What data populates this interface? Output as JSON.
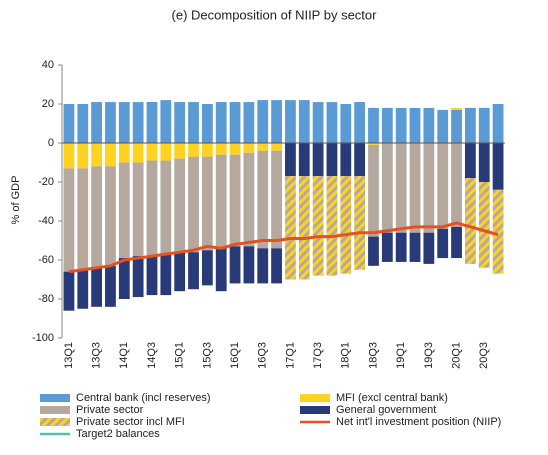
{
  "chart_data": {
    "type": "bar",
    "title": "(e) Decomposition of NIIP by sector",
    "y_label": "% of GDP",
    "categories": [
      "13Q1",
      null,
      "13Q3",
      null,
      "14Q1",
      null,
      "14Q3",
      null,
      "15Q1",
      null,
      "15Q3",
      null,
      "16Q1",
      null,
      "16Q3",
      null,
      "17Q1",
      null,
      "17Q3",
      null,
      "18Q1",
      null,
      "18Q3",
      null,
      "19Q1",
      null,
      "19Q3",
      null,
      "20Q1",
      null,
      "20Q3",
      null
    ],
    "ylim": [
      -100,
      40
    ],
    "yticks": [
      -100,
      -80,
      -60,
      -40,
      -20,
      0,
      20,
      40
    ],
    "series": [
      {
        "name": "Central bank (incl reserves)",
        "type": "bar",
        "color": "#5b9bd5",
        "values": [
          20,
          20,
          21,
          21,
          21,
          21,
          21,
          22,
          21,
          21,
          20,
          21,
          21,
          21,
          22,
          22,
          22,
          22,
          21,
          21,
          20,
          21,
          18,
          18,
          18,
          18,
          18,
          17,
          17,
          18,
          18,
          20
        ]
      },
      {
        "name": "MFI (excl central bank)",
        "type": "bar",
        "color": "#ffd21f",
        "values": [
          -13,
          -13,
          -12,
          -12,
          -10,
          -10,
          -9,
          -9,
          -8,
          -7,
          -7,
          -6,
          -6,
          -5,
          -4,
          -4,
          null,
          null,
          null,
          null,
          null,
          null,
          -1,
          null,
          null,
          null,
          null,
          null,
          1,
          null,
          null,
          null
        ]
      },
      {
        "name": "Private sector",
        "type": "bar",
        "color": "#b5a99f",
        "values": [
          -53,
          -52,
          -52,
          -51,
          -49,
          -48,
          -49,
          -48,
          -48,
          -49,
          -48,
          -48,
          -47,
          -48,
          -50,
          -50,
          null,
          null,
          null,
          null,
          null,
          null,
          -47,
          -46,
          -46,
          -46,
          -46,
          -44,
          -43,
          null,
          null,
          null
        ]
      },
      {
        "name": "General government",
        "type": "bar",
        "color": "#293a78",
        "values": [
          -20,
          -20,
          -20,
          -21,
          -21,
          -21,
          -20,
          -21,
          -20,
          -19,
          -18,
          -22,
          -19,
          -19,
          -18,
          -18,
          -17,
          -17,
          -17,
          -17,
          -17,
          -17,
          -15,
          -15,
          -15,
          -15,
          -16,
          -15,
          -16,
          -18,
          -20,
          -24
        ]
      },
      {
        "name": "Private sector incl MFI",
        "type": "bar",
        "color": "#ffd21f",
        "hatch": "#b5a99f",
        "values": [
          null,
          null,
          null,
          null,
          null,
          null,
          null,
          null,
          null,
          null,
          null,
          null,
          null,
          null,
          null,
          null,
          -53,
          -53,
          -51,
          -51,
          -50,
          -48,
          null,
          null,
          null,
          null,
          null,
          null,
          null,
          -44,
          -44,
          -43
        ]
      },
      {
        "name": "Net int'l investment position (NIIP)",
        "type": "line",
        "color": "#e8501e",
        "values": [
          -66,
          -65,
          -64,
          -63,
          -60,
          -59,
          -58,
          -57,
          -56,
          -55,
          -53,
          -54,
          -52,
          -51,
          -50,
          -50,
          -49,
          -49,
          -48,
          -48,
          -47,
          -46,
          -46,
          -45,
          -44,
          -43,
          -43,
          -43,
          -41,
          -43,
          -45,
          -47
        ]
      },
      {
        "name": "Target2 balances",
        "type": "line",
        "color": "#4fc1b5",
        "values": [
          null,
          null,
          null,
          null,
          null,
          null,
          null,
          null,
          null,
          null,
          null,
          null,
          null,
          null,
          null,
          null,
          null,
          null,
          null,
          null,
          null,
          null,
          null,
          null,
          null,
          null,
          null,
          null,
          null,
          null,
          null,
          null
        ]
      }
    ]
  }
}
